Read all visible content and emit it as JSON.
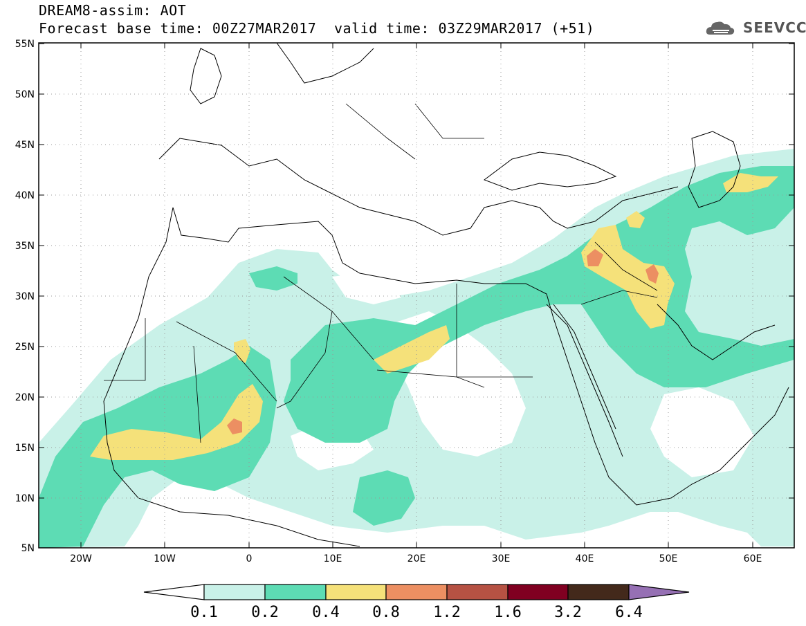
{
  "header": {
    "line1": "DREAM8-assim: AOT",
    "line2_left": "Forecast base time: 00Z27MAR2017",
    "line2_right": "valid time: 03Z29MAR2017 (+51)",
    "logo_text": "SEEVCCC",
    "logo_icon": "cloud-logo-icon"
  },
  "map": {
    "lat_labels": [
      "55N",
      "50N",
      "45N",
      "40N",
      "35N",
      "30N",
      "25N",
      "20N",
      "15N",
      "10N",
      "5N"
    ],
    "lon_labels": [
      "20W",
      "10W",
      "0",
      "10E",
      "20E",
      "30E",
      "40E",
      "50E",
      "60E"
    ],
    "land_color": "#ffffff",
    "border_color": "#000000"
  },
  "colorbar": {
    "labels": [
      "0.1",
      "0.2",
      "0.4",
      "0.8",
      "1.2",
      "1.6",
      "3.2",
      "6.4"
    ],
    "colors": [
      "#c9f1e8",
      "#5ddcb4",
      "#f5e17a",
      "#ec8f62",
      "#b65243",
      "#800021",
      "#43291b"
    ],
    "arrow_low_color": "#ffffff",
    "arrow_high_color": "#9670b4"
  }
}
